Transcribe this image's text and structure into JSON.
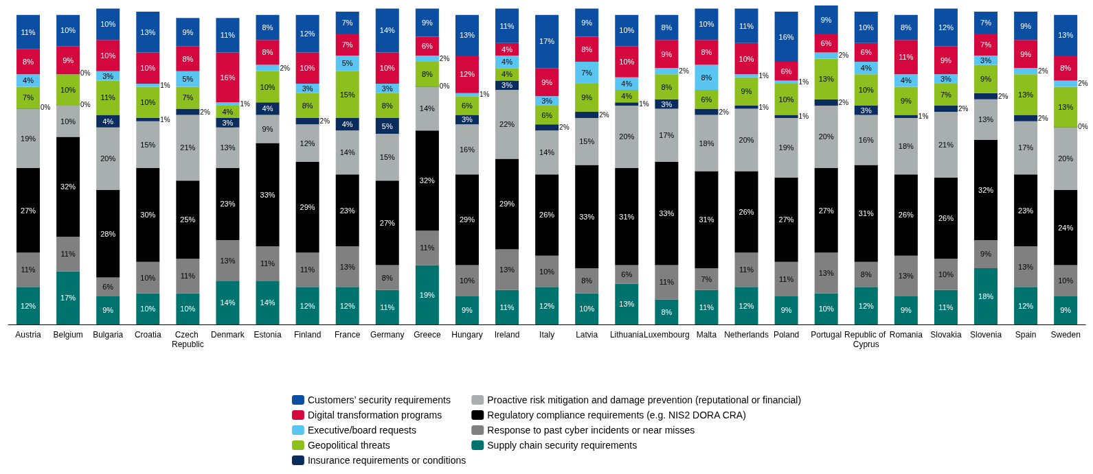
{
  "chart_data": {
    "type": "bar",
    "stacked": true,
    "data_labels": true,
    "legend": "bottom",
    "categories": [
      "Austria",
      "Belgium",
      "Bulgaria",
      "Croatia",
      "Czech Republic",
      "Denmark",
      "Estonia",
      "Finland",
      "France",
      "Germany",
      "Greece",
      "Hungary",
      "Ireland",
      "Italy",
      "Latvia",
      "Lithuania",
      "Luxembourg",
      "Malta",
      "Netherlands",
      "Poland",
      "Portugal",
      "Republic of Cyprus",
      "Romania",
      "Slovakia",
      "Slovenia",
      "Spain",
      "Sweden"
    ],
    "series": [
      {
        "name": "Supply chain security requirements",
        "color": "#00736f",
        "values": [
          12,
          17,
          9,
          10,
          10,
          14,
          14,
          12,
          12,
          11,
          19,
          9,
          11,
          12,
          10,
          13,
          8,
          11,
          12,
          9,
          10,
          12,
          9,
          11,
          18,
          12,
          9
        ],
        "value_labels": [
          "12%",
          "17%",
          "9%",
          "10%",
          "10%",
          "14%",
          "14%",
          "12%",
          "12%",
          "11%",
          "19%",
          "9%",
          "11%",
          "12%",
          "10%",
          "13%",
          "8%",
          "11%",
          "12%",
          "9%",
          "10%",
          "12%",
          "9%",
          "11%",
          "18%",
          "12%",
          "9%"
        ]
      },
      {
        "name": "Response to past cyber incidents or near misses",
        "color": "#808080",
        "values": [
          11,
          11,
          6,
          10,
          11,
          13,
          11,
          11,
          13,
          8,
          11,
          10,
          13,
          10,
          8,
          6,
          11,
          7,
          11,
          11,
          13,
          8,
          13,
          10,
          9,
          13,
          10
        ],
        "value_labels": [
          "11%",
          "11%",
          "6%",
          "10%",
          "11%",
          "13%",
          "11%",
          "11%",
          "13%",
          "8%",
          "11%",
          "10%",
          "13%",
          "10%",
          "8%",
          "6%",
          "11%",
          "7%",
          "11%",
          "11%",
          "13%",
          "8%",
          "13%",
          "10%",
          "9%",
          "13%",
          "10%"
        ]
      },
      {
        "name": "Regulatory compliance requirements (e.g. NIS2 DORA CRA)",
        "color": "#000000",
        "values": [
          27,
          32,
          28,
          30,
          25,
          23,
          33,
          29,
          23,
          27,
          32,
          29,
          29,
          26,
          33,
          31,
          33,
          31,
          26,
          27,
          27,
          31,
          26,
          26,
          32,
          23,
          24
        ],
        "value_labels": [
          "27%",
          "32%",
          "28%",
          "30%",
          "25%",
          "23%",
          "33%",
          "29%",
          "23%",
          "27%",
          "32%",
          "29%",
          "29%",
          "26%",
          "33%",
          "31%",
          "33%",
          "31%",
          "26%",
          "27%",
          "27%",
          "31%",
          "26%",
          "26%",
          "32%",
          "23%",
          "24%"
        ]
      },
      {
        "name": "Proactive risk mitigation and damage prevention (reputational or financial)",
        "color": "#a9aeae",
        "values": [
          19,
          10,
          20,
          15,
          21,
          13,
          9,
          12,
          14,
          15,
          14,
          16,
          22,
          14,
          15,
          20,
          17,
          18,
          20,
          19,
          20,
          16,
          18,
          21,
          13,
          17,
          20
        ],
        "value_labels": [
          "19%",
          "10%",
          "20%",
          "15%",
          "21%",
          "13%",
          "9%",
          "12%",
          "14%",
          "15%",
          "14%",
          "16%",
          "22%",
          "14%",
          "15%",
          "20%",
          "17%",
          "18%",
          "20%",
          "19%",
          "20%",
          "16%",
          "18%",
          "21%",
          "13%",
          "17%",
          "20%"
        ]
      },
      {
        "name": "Insurance requirements or conditions",
        "color": "#0a2d5e",
        "values": [
          0,
          0,
          4,
          1,
          2,
          3,
          4,
          2,
          4,
          5,
          0,
          3,
          3,
          2,
          2,
          1,
          3,
          2,
          1,
          1,
          2,
          3,
          1,
          2,
          2,
          2,
          0
        ],
        "value_labels": [
          "0%",
          "0%",
          "4%",
          "1%",
          "2%",
          "3%",
          "4%",
          "2%",
          "4%",
          "5%",
          "0%",
          "3%",
          "3%",
          "2%",
          "2%",
          "1%",
          "3%",
          "2%",
          "1%",
          "1%",
          "2%",
          "3%",
          "1%",
          "2%",
          "2%",
          "2%",
          "0%"
        ]
      },
      {
        "name": "Geopolitical threats",
        "color": "#8dbf1f",
        "values": [
          7,
          10,
          11,
          10,
          7,
          4,
          10,
          8,
          15,
          8,
          8,
          6,
          4,
          6,
          9,
          4,
          8,
          6,
          9,
          10,
          13,
          10,
          9,
          7,
          9,
          13,
          13
        ],
        "value_labels": [
          "7%",
          "10%",
          "11%",
          "10%",
          "7%",
          "4%",
          "10%",
          "8%",
          "15%",
          "8%",
          "8%",
          "6%",
          "4%",
          "6%",
          "9%",
          "4%",
          "8%",
          "6%",
          "9%",
          "10%",
          "13%",
          "10%",
          "9%",
          "7%",
          "9%",
          "13%",
          "13%"
        ]
      },
      {
        "name": "Executive/board requests",
        "color": "#5bc5f2",
        "values": [
          4,
          0,
          3,
          1,
          5,
          1,
          2,
          3,
          5,
          3,
          2,
          1,
          4,
          3,
          7,
          4,
          2,
          8,
          1,
          1,
          2,
          4,
          4,
          3,
          3,
          2,
          2
        ],
        "value_labels": [
          "4%",
          "0%",
          "3%",
          "1%",
          "5%",
          "1%",
          "2%",
          "3%",
          "5%",
          "3%",
          "2%",
          "1%",
          "4%",
          "3%",
          "7%",
          "4%",
          "2%",
          "8%",
          "1%",
          "1%",
          "2%",
          "4%",
          "4%",
          "3%",
          "3%",
          "2%",
          "2%"
        ]
      },
      {
        "name": "Digital transformation programs",
        "color": "#d4083f",
        "values": [
          8,
          9,
          10,
          10,
          8,
          16,
          8,
          10,
          7,
          10,
          6,
          12,
          4,
          9,
          8,
          10,
          9,
          8,
          10,
          6,
          6,
          6,
          11,
          9,
          7,
          9,
          8
        ],
        "value_labels": [
          "8%",
          "9%",
          "10%",
          "10%",
          "8%",
          "16%",
          "8%",
          "10%",
          "7%",
          "10%",
          "6%",
          "12%",
          "4%",
          "9%",
          "8%",
          "10%",
          "9%",
          "8%",
          "10%",
          "6%",
          "6%",
          "6%",
          "11%",
          "9%",
          "7%",
          "9%",
          "8%"
        ]
      },
      {
        "name": "Customers’ security requirements",
        "color": "#0b4ea2",
        "values": [
          11,
          10,
          10,
          13,
          9,
          11,
          8,
          12,
          7,
          14,
          9,
          13,
          11,
          17,
          9,
          10,
          8,
          10,
          11,
          16,
          9,
          10,
          8,
          12,
          7,
          9,
          13
        ],
        "value_labels": [
          "11%",
          "10%",
          "10%",
          "13%",
          "9%",
          "11%",
          "8%",
          "12%",
          "7%",
          "14%",
          "9%",
          "13%",
          "11%",
          "17%",
          "9%",
          "10%",
          "8%",
          "10%",
          "11%",
          "16%",
          "9%",
          "10%",
          "8%",
          "12%",
          "7%",
          "9%",
          "13%"
        ]
      }
    ]
  }
}
